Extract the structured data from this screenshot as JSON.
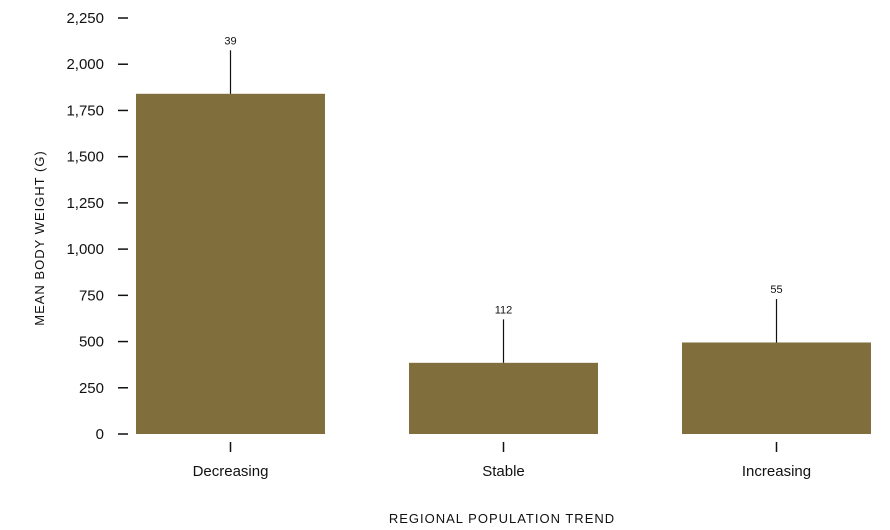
{
  "chart_data": {
    "type": "bar",
    "title": "",
    "xlabel": "REGIONAL POPULATION TREND",
    "ylabel": "MEAN BODY WEIGHT (G)",
    "ylim": [
      0,
      2250
    ],
    "yticks": [
      0,
      250,
      500,
      750,
      1000,
      1250,
      1500,
      1750,
      2000,
      2250
    ],
    "ytick_labels": [
      "0",
      "250",
      "500",
      "750",
      "1,000",
      "1,250",
      "1,500",
      "1,750",
      "2,000",
      "2,250"
    ],
    "categories": [
      "Decreasing",
      "Stable",
      "Increasing"
    ],
    "values": [
      1840,
      385,
      495
    ],
    "error_upper": [
      2075,
      620,
      730
    ],
    "data_labels": [
      "39",
      "112",
      "55"
    ],
    "bar_color": "#806f3d",
    "grid": false,
    "legend": "none"
  }
}
